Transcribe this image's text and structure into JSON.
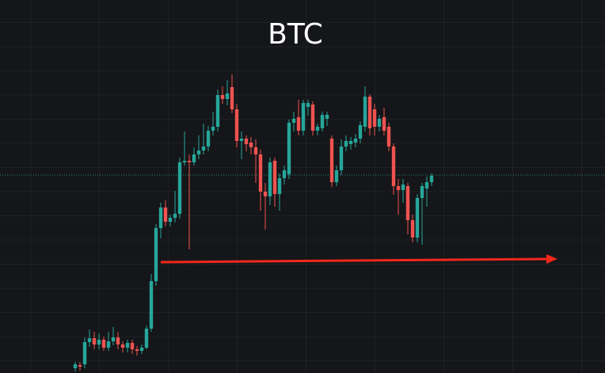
{
  "chart_data": {
    "type": "candlestick",
    "title": "BTC",
    "open": [
      6,
      10,
      11,
      39,
      44,
      36,
      42,
      32,
      40,
      45,
      36,
      32,
      38,
      30,
      28,
      32,
      56,
      116,
      183,
      209,
      191,
      196,
      201,
      266,
      268,
      266,
      276,
      281,
      286,
      306,
      311,
      351,
      346,
      361,
      333,
      293,
      296,
      291,
      285,
      276,
      229,
      223,
      268,
      226,
      246,
      251,
      316,
      323,
      306,
      336,
      339,
      306,
      309,
      321,
      296,
      241,
      256,
      286,
      289,
      291,
      296,
      311,
      349,
      333,
      311,
      323,
      311,
      286,
      236,
      231,
      236,
      193,
      171,
      221,
      233,
      241
    ],
    "high": [
      14,
      14,
      45,
      55,
      52,
      50,
      46,
      52,
      58,
      52,
      40,
      42,
      42,
      34,
      36,
      60,
      125,
      188,
      215,
      218,
      200,
      230,
      272,
      305,
      276,
      285,
      300,
      315,
      312,
      330,
      358,
      362,
      370,
      377,
      340,
      305,
      300,
      298,
      295,
      282,
      240,
      272,
      272,
      252,
      262,
      320,
      330,
      345,
      345,
      345,
      343,
      315,
      330,
      330,
      300,
      262,
      295,
      300,
      298,
      302,
      318,
      362,
      352,
      340,
      326,
      335,
      316,
      290,
      245,
      245,
      240,
      200,
      226,
      240,
      248,
      252
    ],
    "low": [
      2,
      3,
      6,
      33,
      30,
      30,
      28,
      28,
      35,
      30,
      26,
      26,
      24,
      22,
      24,
      30,
      52,
      110,
      170,
      185,
      185,
      190,
      195,
      262,
      156,
      262,
      270,
      276,
      280,
      300,
      305,
      340,
      338,
      328,
      285,
      270,
      280,
      276,
      240,
      205,
      181,
      212,
      210,
      205,
      238,
      245,
      305,
      300,
      300,
      325,
      300,
      300,
      305,
      312,
      235,
      236,
      250,
      280,
      282,
      285,
      290,
      305,
      300,
      300,
      305,
      300,
      280,
      225,
      200,
      215,
      175,
      165,
      165,
      162,
      210,
      236
    ],
    "close": [
      11,
      8,
      39,
      44,
      36,
      42,
      32,
      40,
      45,
      36,
      32,
      38,
      30,
      28,
      32,
      56,
      116,
      183,
      209,
      191,
      196,
      201,
      266,
      268,
      266,
      276,
      281,
      286,
      306,
      311,
      351,
      346,
      353,
      333,
      293,
      296,
      289,
      285,
      276,
      229,
      223,
      266,
      226,
      246,
      256,
      316,
      321,
      306,
      341,
      341,
      306,
      311,
      326,
      326,
      241,
      256,
      286,
      293,
      293,
      296,
      313,
      349,
      309,
      311,
      321,
      306,
      286,
      236,
      231,
      238,
      193,
      171,
      221,
      236,
      241,
      249
    ],
    "up_color": "#26a69a",
    "down_color": "#ef5350",
    "price_line": 250,
    "price_line_color": "#26a69a",
    "ylim": [
      0,
      471
    ]
  }
}
